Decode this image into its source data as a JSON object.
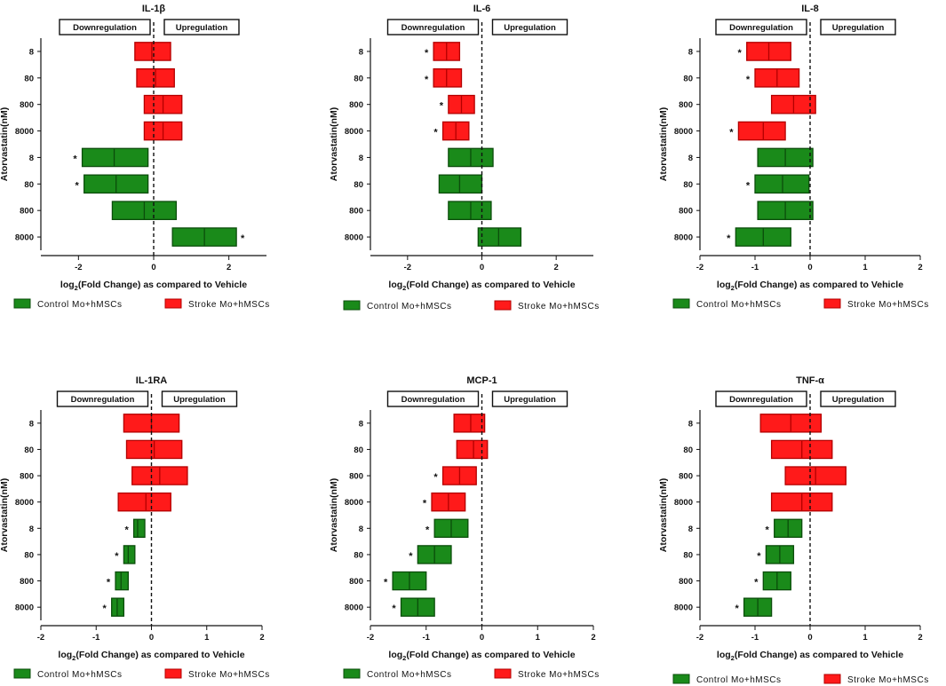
{
  "figure": {
    "shared": {
      "ylabel": "Atorvastatin(nM)",
      "xlabel_main": "log",
      "xlabel_sub": "2",
      "xlabel_rest": "(Fold Change) as compared to Vehicle",
      "down_label": "Downregulation",
      "up_label": "Upregulation",
      "legend_control": "Control Mo+hMSCs",
      "legend_stroke": "Stroke Mo+hMSCs",
      "category_labels": [
        "8",
        "80",
        "800",
        "8000",
        "8",
        "80",
        "800",
        "8000"
      ],
      "star": "*"
    },
    "colors": {
      "control_fill": "#1a8a1a",
      "control_stroke": "#0b4d0b",
      "stroke_fill": "#ff1a1a",
      "stroke_stroke": "#b30000"
    }
  },
  "chart_data": [
    {
      "type": "bar",
      "title": "IL-1β",
      "xlim": [
        -3,
        3
      ],
      "xticks": [
        -2,
        0,
        2
      ],
      "series": [
        {
          "name": "Stroke Mo+hMSCs",
          "group": "stroke",
          "categories": [
            "8",
            "80",
            "800",
            "8000"
          ],
          "min": [
            -0.5,
            -0.45,
            -0.25,
            -0.25
          ],
          "mean": [
            -0.05,
            0.05,
            0.25,
            0.25
          ],
          "max": [
            0.45,
            0.55,
            0.75,
            0.75
          ],
          "significant": [
            false,
            false,
            false,
            false
          ]
        },
        {
          "name": "Control Mo+hMSCs",
          "group": "control",
          "categories": [
            "8",
            "80",
            "800",
            "8000"
          ],
          "min": [
            -1.9,
            -1.85,
            -1.1,
            0.5
          ],
          "mean": [
            -1.05,
            -1.0,
            -0.25,
            1.35
          ],
          "max": [
            -0.15,
            -0.15,
            0.6,
            2.2
          ],
          "significant": [
            true,
            true,
            false,
            true
          ]
        }
      ]
    },
    {
      "type": "bar",
      "title": "IL-6",
      "xlim": [
        -3,
        3
      ],
      "xticks": [
        -2,
        0,
        2
      ],
      "series": [
        {
          "name": "Stroke Mo+hMSCs",
          "group": "stroke",
          "categories": [
            "8",
            "80",
            "800",
            "8000"
          ],
          "min": [
            -1.3,
            -1.3,
            -0.9,
            -1.05
          ],
          "mean": [
            -0.95,
            -0.95,
            -0.55,
            -0.7
          ],
          "max": [
            -0.6,
            -0.55,
            -0.2,
            -0.35
          ],
          "significant": [
            true,
            true,
            true,
            true
          ]
        },
        {
          "name": "Control Mo+hMSCs",
          "group": "control",
          "categories": [
            "8",
            "80",
            "800",
            "8000"
          ],
          "min": [
            -0.9,
            -1.15,
            -0.9,
            -0.1
          ],
          "mean": [
            -0.3,
            -0.6,
            -0.3,
            0.45
          ],
          "max": [
            0.3,
            0.0,
            0.25,
            1.05
          ],
          "significant": [
            false,
            false,
            false,
            false
          ]
        }
      ]
    },
    {
      "type": "bar",
      "title": "IL-8",
      "xlim": [
        -2,
        2
      ],
      "xticks": [
        -2,
        -1,
        0,
        1,
        2
      ],
      "series": [
        {
          "name": "Stroke Mo+hMSCs",
          "group": "stroke",
          "categories": [
            "8",
            "80",
            "800",
            "8000"
          ],
          "min": [
            -1.15,
            -1.0,
            -0.7,
            -1.3
          ],
          "mean": [
            -0.75,
            -0.6,
            -0.3,
            -0.85
          ],
          "max": [
            -0.35,
            -0.2,
            0.1,
            -0.45
          ],
          "significant": [
            true,
            true,
            false,
            true
          ]
        },
        {
          "name": "Control Mo+hMSCs",
          "group": "control",
          "categories": [
            "8",
            "80",
            "800",
            "8000"
          ],
          "min": [
            -0.95,
            -1.0,
            -0.95,
            -1.35
          ],
          "mean": [
            -0.45,
            -0.5,
            -0.45,
            -0.85
          ],
          "max": [
            0.05,
            -0.02,
            0.05,
            -0.35
          ],
          "significant": [
            false,
            true,
            false,
            true
          ]
        }
      ]
    },
    {
      "type": "bar",
      "title": "IL-1RA",
      "xlim": [
        -2,
        2
      ],
      "xticks": [
        -2,
        -1,
        0,
        1,
        2
      ],
      "series": [
        {
          "name": "Stroke Mo+hMSCs",
          "group": "stroke",
          "categories": [
            "8",
            "80",
            "800",
            "8000"
          ],
          "min": [
            -0.5,
            -0.45,
            -0.35,
            -0.6
          ],
          "mean": [
            0.0,
            0.05,
            0.15,
            -0.1
          ],
          "max": [
            0.5,
            0.55,
            0.65,
            0.35
          ],
          "significant": [
            false,
            false,
            false,
            false
          ]
        },
        {
          "name": "Control Mo+hMSCs",
          "group": "control",
          "categories": [
            "8",
            "80",
            "800",
            "8000"
          ],
          "min": [
            -0.32,
            -0.5,
            -0.65,
            -0.72
          ],
          "mean": [
            -0.25,
            -0.42,
            -0.55,
            -0.62
          ],
          "max": [
            -0.12,
            -0.3,
            -0.42,
            -0.5
          ],
          "significant": [
            true,
            true,
            true,
            true
          ]
        }
      ]
    },
    {
      "type": "bar",
      "title": "MCP-1",
      "xlim": [
        -2,
        2
      ],
      "xticks": [
        -2,
        -1,
        0,
        1,
        2
      ],
      "series": [
        {
          "name": "Stroke Mo+hMSCs",
          "group": "stroke",
          "categories": [
            "8",
            "80",
            "800",
            "8000"
          ],
          "min": [
            -0.5,
            -0.45,
            -0.7,
            -0.9
          ],
          "mean": [
            -0.2,
            -0.15,
            -0.4,
            -0.6
          ],
          "max": [
            0.05,
            0.1,
            -0.1,
            -0.3
          ],
          "significant": [
            false,
            false,
            true,
            true
          ]
        },
        {
          "name": "Control Mo+hMSCs",
          "group": "control",
          "categories": [
            "8",
            "80",
            "800",
            "8000"
          ],
          "min": [
            -0.85,
            -1.15,
            -1.6,
            -1.45
          ],
          "mean": [
            -0.55,
            -0.85,
            -1.3,
            -1.15
          ],
          "max": [
            -0.25,
            -0.55,
            -1.0,
            -0.85
          ],
          "significant": [
            true,
            true,
            true,
            true
          ]
        }
      ]
    },
    {
      "type": "bar",
      "title": "TNF-α",
      "xlim": [
        -2,
        2
      ],
      "xticks": [
        -2,
        -1,
        0,
        1,
        2
      ],
      "series": [
        {
          "name": "Stroke Mo+hMSCs",
          "group": "stroke",
          "categories": [
            "8",
            "80",
            "800",
            "8000"
          ],
          "min": [
            -0.9,
            -0.7,
            -0.45,
            -0.7
          ],
          "mean": [
            -0.35,
            -0.15,
            0.1,
            -0.15
          ],
          "max": [
            0.2,
            0.4,
            0.65,
            0.4
          ],
          "significant": [
            false,
            false,
            false,
            false
          ]
        },
        {
          "name": "Control Mo+hMSCs",
          "group": "control",
          "categories": [
            "8",
            "80",
            "800",
            "8000"
          ],
          "min": [
            -0.65,
            -0.8,
            -0.85,
            -1.2
          ],
          "mean": [
            -0.4,
            -0.55,
            -0.6,
            -0.95
          ],
          "max": [
            -0.15,
            -0.3,
            -0.35,
            -0.7
          ],
          "significant": [
            true,
            true,
            true,
            true
          ]
        }
      ]
    }
  ]
}
